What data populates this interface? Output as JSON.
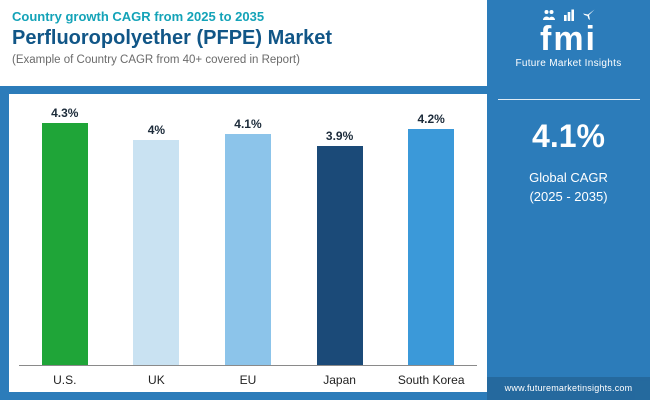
{
  "header": {
    "eyebrow": "Country growth CAGR from 2025 to 2035",
    "title": "Perfluoropolyether (PFPE) Market",
    "subtitle": "(Example of Country CAGR from 40+ covered in Report)"
  },
  "sidebar": {
    "logo_text": "fmi",
    "brand_name": "Future Market Insights",
    "cagr_value": "4.1%",
    "cagr_label_line1": "Global CAGR",
    "cagr_label_line2": "(2025 - 2035)",
    "website": "www.futuremarketinsights.com"
  },
  "chart_data": {
    "type": "bar",
    "title": "Country growth CAGR from 2025 to 2035",
    "categories": [
      "U.S.",
      "UK",
      "EU",
      "Japan",
      "South Korea"
    ],
    "values": [
      4.3,
      4.0,
      4.1,
      3.9,
      4.2
    ],
    "value_labels": [
      "4.3%",
      "4%",
      "4.1%",
      "3.9%",
      "4.2%"
    ],
    "bar_colors": [
      "#1fa538",
      "#c9e2f2",
      "#8cc4ea",
      "#1b4a78",
      "#3b99d9"
    ],
    "xlabel": "",
    "ylabel": "",
    "ylim": [
      0,
      4.8
    ],
    "grid": false,
    "legend": false
  },
  "colors": {
    "background_blue": "#2c7cba",
    "eyebrow_teal": "#14a3b8",
    "title_navy": "#115687",
    "value_label_dark": "#1c2b3a"
  }
}
